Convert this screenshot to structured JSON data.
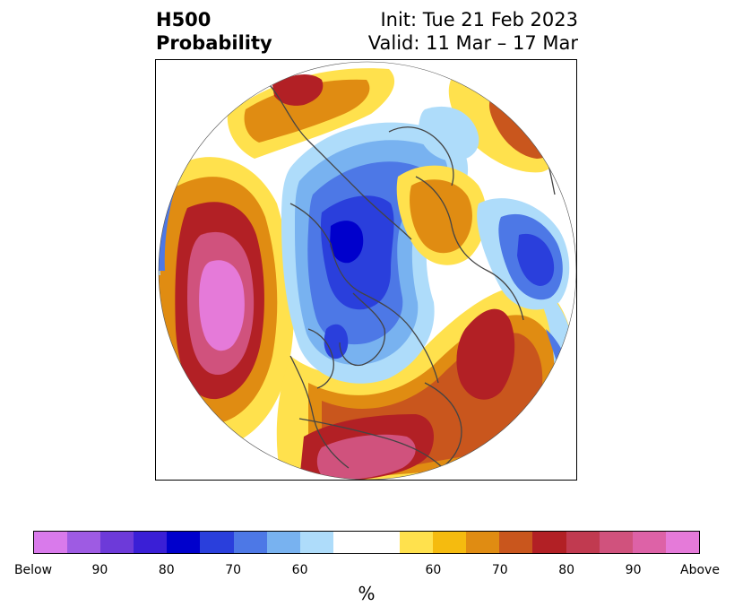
{
  "title": {
    "left_line1": "H500",
    "left_line2": "Probability",
    "right_line1": "Init: Tue 21 Feb 2023",
    "right_line2": "Valid: 11 Mar – 17 Mar"
  },
  "colorbar": {
    "unit": "%",
    "colors": [
      "#d97aeb",
      "#9e5be3",
      "#6d3ad9",
      "#3a1fd6",
      "#0000cc",
      "#2a3fdc",
      "#4d78e6",
      "#78b2f0",
      "#aedcfa",
      "#ffffff",
      "#ffffff",
      "#ffe14d",
      "#f5bb0f",
      "#e08c12",
      "#c9561d",
      "#b22025",
      "#c13a50",
      "#d0527d",
      "#dd62a7",
      "#e57ad9"
    ],
    "tick_labels": [
      "Below",
      "90",
      "80",
      "70",
      "60",
      "60",
      "70",
      "80",
      "90",
      "Above"
    ]
  },
  "map": {
    "projection": "north-polar-stereographic",
    "anomaly_colors": {
      "above_60": "#ffe14d",
      "above_65": "#f5bb0f",
      "above_70": "#e08c12",
      "above_75": "#c9561d",
      "above_80": "#b22025",
      "above_85": "#c13a50",
      "above_90": "#d0527d",
      "above_95": "#e57ad9",
      "below_60": "#aedcfa",
      "below_65": "#78b2f0",
      "below_70": "#4d78e6",
      "below_75": "#2a3fdc",
      "below_80": "#0000cc"
    }
  }
}
